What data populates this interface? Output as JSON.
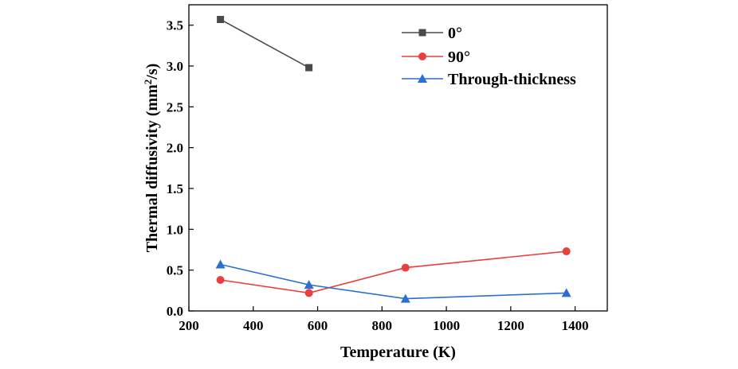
{
  "chart_data": {
    "type": "line",
    "xlabel": "Temperature (K)",
    "ylabel": "Thermal diffusivity (mm",
    "ylabel_sup": "2",
    "ylabel_unit_tail": "/s)",
    "xlim": [
      200,
      1500
    ],
    "ylim": [
      0.0,
      3.75
    ],
    "x_ticks": [
      200,
      400,
      600,
      800,
      1000,
      1200,
      1400
    ],
    "x_tick_labels": [
      "200",
      "400",
      "600",
      "800",
      "1000",
      "1200",
      "1400"
    ],
    "y_ticks": [
      0.0,
      0.5,
      1.0,
      1.5,
      2.0,
      2.5,
      3.0,
      3.5
    ],
    "y_tick_labels": [
      "0.0",
      "0.5",
      "1.0",
      "1.5",
      "2.0",
      "2.5",
      "3.0",
      "3.5"
    ],
    "grid": false,
    "legend_position": "top-right",
    "series": [
      {
        "name": "0°",
        "color": "#4a4a4a",
        "marker": "square",
        "x": [
          298,
          573
        ],
        "y": [
          3.57,
          2.98
        ]
      },
      {
        "name": "90°",
        "color": "#e8403c",
        "marker": "circle",
        "x": [
          298,
          573,
          873,
          1373
        ],
        "y": [
          0.38,
          0.22,
          0.53,
          0.73
        ]
      },
      {
        "name": "Through-thickness",
        "color": "#2a6fd1",
        "marker": "triangle",
        "x": [
          298,
          573,
          873,
          1373
        ],
        "y": [
          0.57,
          0.32,
          0.15,
          0.22
        ]
      }
    ]
  }
}
